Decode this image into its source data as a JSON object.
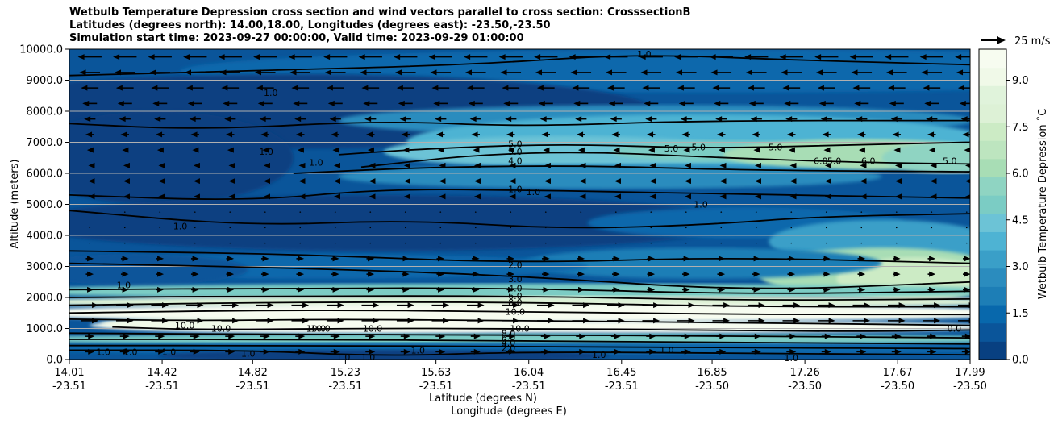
{
  "title_lines": [
    "Wetbulb Temperature Depression cross section and wind vectors parallel to cross section: CrosssectionB",
    "Latitudes (degrees north): 14.00,18.00, Longitudes (degrees east): -23.50,-23.50",
    "Simulation start time: 2023-09-27 00:00:00, Valid time: 2023-09-29 01:00:00"
  ],
  "chart_data": {
    "type": "heatmap",
    "title": "Wetbulb Temperature Depression cross section and wind vectors parallel to cross section: CrosssectionB",
    "subtitle": [
      "Latitudes (degrees north): 14.00,18.00, Longitudes (degrees east): -23.50,-23.50",
      "Simulation start time: 2023-09-27 00:00:00, Valid time: 2023-09-29 01:00:00"
    ],
    "ylabel": "Altitude (meters)",
    "xlabel_lines": [
      "Latitude (degrees N)",
      "Longitude (degrees E)"
    ],
    "ylim": [
      0,
      10000
    ],
    "xlim": [
      14.01,
      17.99
    ],
    "y_ticks": [
      {
        "value": 0,
        "label": "0.0"
      },
      {
        "value": 1000,
        "label": "1000.0"
      },
      {
        "value": 2000,
        "label": "2000.0"
      },
      {
        "value": 3000,
        "label": "3000.0"
      },
      {
        "value": 4000,
        "label": "4000.0"
      },
      {
        "value": 5000,
        "label": "5000.0"
      },
      {
        "value": 6000,
        "label": "6000.0"
      },
      {
        "value": 7000,
        "label": "7000.0"
      },
      {
        "value": 8000,
        "label": "8000.0"
      },
      {
        "value": 9000,
        "label": "9000.0"
      },
      {
        "value": 10000,
        "label": "10000.0"
      }
    ],
    "x_ticks": [
      {
        "lat": 14.01,
        "lat_label": "14.01",
        "lon_label": "-23.51"
      },
      {
        "lat": 14.42,
        "lat_label": "14.42",
        "lon_label": "-23.51"
      },
      {
        "lat": 14.82,
        "lat_label": "14.82",
        "lon_label": "-23.51"
      },
      {
        "lat": 15.23,
        "lat_label": "15.23",
        "lon_label": "-23.51"
      },
      {
        "lat": 15.63,
        "lat_label": "15.63",
        "lon_label": "-23.51"
      },
      {
        "lat": 16.04,
        "lat_label": "16.04",
        "lon_label": "-23.51"
      },
      {
        "lat": 16.45,
        "lat_label": "16.45",
        "lon_label": "-23.51"
      },
      {
        "lat": 16.85,
        "lat_label": "16.85",
        "lon_label": "-23.50"
      },
      {
        "lat": 17.26,
        "lat_label": "17.26",
        "lon_label": "-23.50"
      },
      {
        "lat": 17.67,
        "lat_label": "17.67",
        "lon_label": "-23.50"
      },
      {
        "lat": 17.99,
        "lat_label": "17.99",
        "lon_label": "-23.50"
      }
    ],
    "grid": "horizontal",
    "colorbar": {
      "label": "Wetbulb Temperature Depression $^\\circ$C",
      "label_display": "Wetbulb Temperature Depression ˚C",
      "range": [
        0,
        10
      ],
      "ticks": [
        {
          "value": 0,
          "label": "0.0"
        },
        {
          "value": 1.5,
          "label": "1.5"
        },
        {
          "value": 3.0,
          "label": "3.0"
        },
        {
          "value": 4.5,
          "label": "4.5"
        },
        {
          "value": 6.0,
          "label": "6.0"
        },
        {
          "value": 7.5,
          "label": "7.5"
        },
        {
          "value": 9.0,
          "label": "9.0"
        }
      ],
      "colors": [
        "#084081",
        "#0a559a",
        "#0868ac",
        "#1d7eb6",
        "#2b8cbe",
        "#3a9fc8",
        "#4eb3d3",
        "#6cc3d6",
        "#7bccc4",
        "#8fd4c2",
        "#a8ddb5",
        "#bde5bf",
        "#ccebc5",
        "#ddf1d6",
        "#e0f3db",
        "#f0f9e8",
        "#f7fcf0"
      ]
    },
    "quiver_key": {
      "label": "25 m/s",
      "speed": 25
    },
    "contour_labels": [
      {
        "text": "1.0",
        "lat": 16.55,
        "alt": 9850
      },
      {
        "text": "1.0",
        "lat": 14.9,
        "alt": 8600
      },
      {
        "text": "1.0",
        "lat": 14.88,
        "alt": 6700
      },
      {
        "text": "1.0",
        "lat": 15.1,
        "alt": 6350
      },
      {
        "text": "5.0",
        "lat": 15.98,
        "alt": 6950
      },
      {
        "text": "5.0",
        "lat": 15.98,
        "alt": 6700
      },
      {
        "text": "4.0",
        "lat": 15.98,
        "alt": 6400
      },
      {
        "text": "5.0",
        "lat": 16.67,
        "alt": 6800
      },
      {
        "text": "5.0",
        "lat": 16.79,
        "alt": 6850
      },
      {
        "text": "5.0",
        "lat": 17.13,
        "alt": 6850
      },
      {
        "text": "6.0",
        "lat": 17.33,
        "alt": 6400
      },
      {
        "text": "5.0",
        "lat": 17.39,
        "alt": 6400
      },
      {
        "text": "6.0",
        "lat": 17.54,
        "alt": 6400
      },
      {
        "text": "5.0",
        "lat": 17.9,
        "alt": 6400
      },
      {
        "text": "1.0",
        "lat": 15.98,
        "alt": 5500
      },
      {
        "text": "1.0",
        "lat": 16.06,
        "alt": 5400
      },
      {
        "text": "1.0",
        "lat": 16.8,
        "alt": 5000
      },
      {
        "text": "1.0",
        "lat": 14.5,
        "alt": 4300
      },
      {
        "text": "2.0",
        "lat": 15.98,
        "alt": 3050
      },
      {
        "text": "3.0",
        "lat": 15.98,
        "alt": 2600
      },
      {
        "text": "4.0",
        "lat": 15.98,
        "alt": 2300
      },
      {
        "text": "6.0",
        "lat": 15.98,
        "alt": 2050
      },
      {
        "text": "8.0",
        "lat": 15.98,
        "alt": 1850
      },
      {
        "text": "10.0",
        "lat": 15.98,
        "alt": 1550
      },
      {
        "text": "1.0",
        "lat": 14.25,
        "alt": 2400
      },
      {
        "text": "10.0",
        "lat": 14.52,
        "alt": 1100
      },
      {
        "text": "10.0",
        "lat": 14.68,
        "alt": 1000
      },
      {
        "text": "10.0",
        "lat": 15.1,
        "alt": 1000
      },
      {
        "text": "10.0",
        "lat": 15.12,
        "alt": 1000
      },
      {
        "text": "10.0",
        "lat": 15.35,
        "alt": 1000
      },
      {
        "text": "10.0",
        "lat": 16.0,
        "alt": 1000
      },
      {
        "text": "8.0",
        "lat": 15.95,
        "alt": 850
      },
      {
        "text": "6.0",
        "lat": 15.95,
        "alt": 700
      },
      {
        "text": "4.0",
        "lat": 15.95,
        "alt": 550
      },
      {
        "text": "2.0",
        "lat": 15.95,
        "alt": 380
      },
      {
        "text": "1.0",
        "lat": 14.16,
        "alt": 250
      },
      {
        "text": "1.0",
        "lat": 14.28,
        "alt": 250
      },
      {
        "text": "1.0",
        "lat": 14.45,
        "alt": 250
      },
      {
        "text": "1.0",
        "lat": 14.8,
        "alt": 200
      },
      {
        "text": "1.0",
        "lat": 15.22,
        "alt": 80
      },
      {
        "text": "1.0",
        "lat": 15.33,
        "alt": 80
      },
      {
        "text": "1.0",
        "lat": 15.55,
        "alt": 300
      },
      {
        "text": "1.0",
        "lat": 16.35,
        "alt": 150
      },
      {
        "text": "1.0",
        "lat": 16.65,
        "alt": 300
      },
      {
        "text": "1.0",
        "lat": 17.2,
        "alt": 50
      },
      {
        "text": "0.0",
        "lat": 17.92,
        "alt": 1000
      }
    ]
  }
}
